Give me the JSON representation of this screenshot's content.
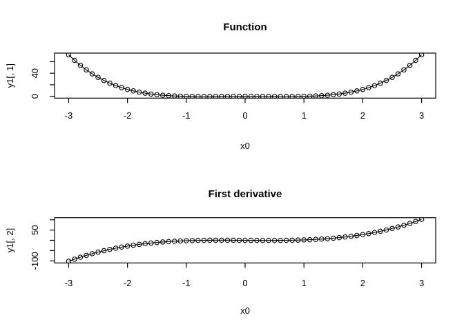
{
  "figure": {
    "background": "#ffffff",
    "stroke_color": "#000000",
    "marker": "open-circle",
    "line_type": "solid"
  },
  "chart_data": [
    {
      "type": "line",
      "title": "Function",
      "xlabel": "x0",
      "ylabel": "y1[, 1]",
      "legend": null,
      "grid": false,
      "marker": "open-circle",
      "xlim": [
        -3.24,
        3.24
      ],
      "ylim": [
        -3.139,
        74.886
      ],
      "xticks": [
        -3,
        -2,
        -1,
        0,
        1,
        2,
        3
      ],
      "xtick_labels": [
        "-3",
        "-2",
        "-1",
        "0",
        "1",
        "2",
        "3"
      ],
      "yticks": [
        0,
        20,
        40,
        60
      ],
      "ytick_labels": [
        "0",
        "",
        "40",
        ""
      ],
      "x": [
        -3,
        -2.9,
        -2.8,
        -2.7,
        -2.6,
        -2.5,
        -2.4,
        -2.3,
        -2.2,
        -2.1,
        -2,
        -1.9,
        -1.8,
        -1.7,
        -1.6,
        -1.5,
        -1.4,
        -1.3,
        -1.2,
        -1.1,
        -1,
        -0.9,
        -0.8,
        -0.7,
        -0.6,
        -0.5,
        -0.4,
        -0.3,
        -0.2,
        -0.1,
        0,
        0.1,
        0.2,
        0.3,
        0.4,
        0.5,
        0.6,
        0.7,
        0.8,
        0.9,
        1,
        1.1,
        1.2,
        1.3,
        1.4,
        1.5,
        1.6,
        1.7,
        1.8,
        1.9,
        2,
        2.1,
        2.2,
        2.3,
        2.4,
        2.5,
        2.6,
        2.7,
        2.8,
        2.9,
        3
      ],
      "y": [
        72,
        62.3181,
        53.6256,
        45.8541,
        38.9376,
        32.8125,
        27.4176,
        22.6941,
        18.5856,
        15.0381,
        12,
        9.4221,
        7.2576,
        5.4621,
        3.9936,
        2.8125,
        1.8816,
        1.1661,
        0.6336,
        0.2541,
        0,
        -0.1539,
        -0.2304,
        -0.2499,
        -0.2304,
        -0.1875,
        -0.1344,
        -0.0819,
        -0.0384,
        -0.0099,
        0,
        -0.0099,
        -0.0384,
        -0.0819,
        -0.1344,
        -0.1875,
        -0.2304,
        -0.2499,
        -0.2304,
        -0.1539,
        0,
        0.2541,
        0.6336,
        1.1661,
        1.8816,
        2.8125,
        3.9936,
        5.4621,
        7.2576,
        9.4221,
        12,
        15.0381,
        18.5856,
        22.6941,
        27.4176,
        32.8125,
        38.9376,
        45.8541,
        53.6256,
        62.3181,
        72
      ]
    },
    {
      "type": "line",
      "title": "First derivative",
      "xlabel": "x0",
      "ylabel": "y1[, 2]",
      "legend": null,
      "grid": false,
      "marker": "open-circle",
      "xlim": [
        -3.24,
        3.24
      ],
      "ylim": [
        -110.16,
        110.16
      ],
      "xticks": [
        -3,
        -2,
        -1,
        0,
        1,
        2,
        3
      ],
      "xtick_labels": [
        "-3",
        "-2",
        "-1",
        "0",
        "1",
        "2",
        "3"
      ],
      "yticks": [
        -100,
        -50,
        0,
        50,
        100
      ],
      "ytick_labels": [
        "-100",
        "",
        "",
        "50",
        ""
      ],
      "x": [
        -3,
        -2.9,
        -2.8,
        -2.7,
        -2.6,
        -2.5,
        -2.4,
        -2.3,
        -2.2,
        -2.1,
        -2,
        -1.9,
        -1.8,
        -1.7,
        -1.6,
        -1.5,
        -1.4,
        -1.3,
        -1.2,
        -1.1,
        -1,
        -0.9,
        -0.8,
        -0.7,
        -0.6,
        -0.5,
        -0.4,
        -0.3,
        -0.2,
        -0.1,
        0,
        0.1,
        0.2,
        0.3,
        0.4,
        0.5,
        0.6,
        0.7,
        0.8,
        0.9,
        1,
        1.1,
        1.2,
        1.3,
        1.4,
        1.5,
        1.6,
        1.7,
        1.8,
        1.9,
        2,
        2.1,
        2.2,
        2.3,
        2.4,
        2.5,
        2.6,
        2.7,
        2.8,
        2.9,
        3
      ],
      "y": [
        -102,
        -91.756,
        -82.208,
        -73.332,
        -65.104,
        -57.5,
        -50.496,
        -44.068,
        -38.192,
        -32.844,
        -28,
        -23.636,
        -19.728,
        -16.252,
        -13.184,
        -10.5,
        -8.176,
        -6.188,
        -4.512,
        -3.124,
        -2,
        -1.116,
        -0.448,
        0.028,
        0.336,
        0.5,
        0.544,
        0.492,
        0.368,
        0.196,
        0,
        -0.196,
        -0.368,
        -0.492,
        -0.544,
        -0.5,
        -0.336,
        -0.028,
        0.448,
        1.116,
        2,
        3.124,
        4.512,
        6.188,
        8.176,
        10.5,
        13.184,
        16.252,
        19.728,
        23.636,
        28,
        32.844,
        38.192,
        44.068,
        50.496,
        57.5,
        65.104,
        73.332,
        82.208,
        91.756,
        102
      ]
    }
  ]
}
